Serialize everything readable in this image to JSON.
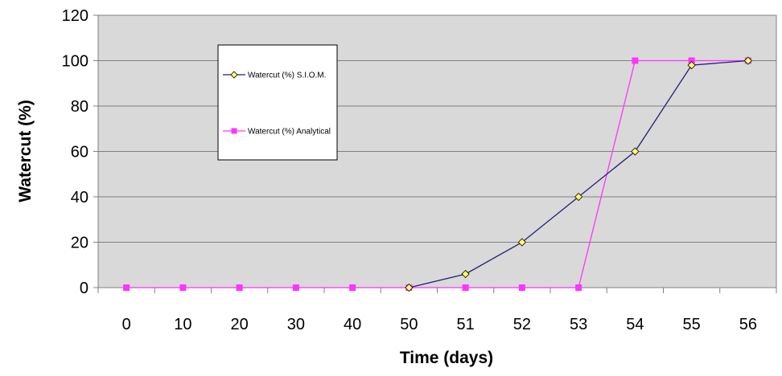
{
  "chart_data": {
    "type": "line",
    "title": "",
    "xlabel": "Time (days)",
    "ylabel": "Watercut (%)",
    "categories": [
      "0",
      "10",
      "20",
      "30",
      "40",
      "50",
      "51",
      "52",
      "53",
      "54",
      "55",
      "56"
    ],
    "ylim": [
      0,
      120
    ],
    "yticks": [
      "0",
      "20",
      "40",
      "60",
      "80",
      "100",
      "120"
    ],
    "grid": "horizontal",
    "legend_position": "upper-left inside plot",
    "plot_background": "#d9d9d9",
    "series": [
      {
        "name": "Watercut (%) S.I.O.M.",
        "color": "#1f1f7a",
        "marker": "diamond",
        "marker_fill": "#ffff66",
        "values": [
          null,
          null,
          null,
          null,
          null,
          0,
          6,
          20,
          40,
          60,
          98,
          100
        ]
      },
      {
        "name": "Watercut (%) Analytical",
        "color": "#ff33ff",
        "marker": "square",
        "marker_fill": "#ff33ff",
        "values": [
          0,
          0,
          0,
          0,
          0,
          0,
          0,
          0,
          0,
          100,
          100,
          100
        ]
      }
    ]
  }
}
